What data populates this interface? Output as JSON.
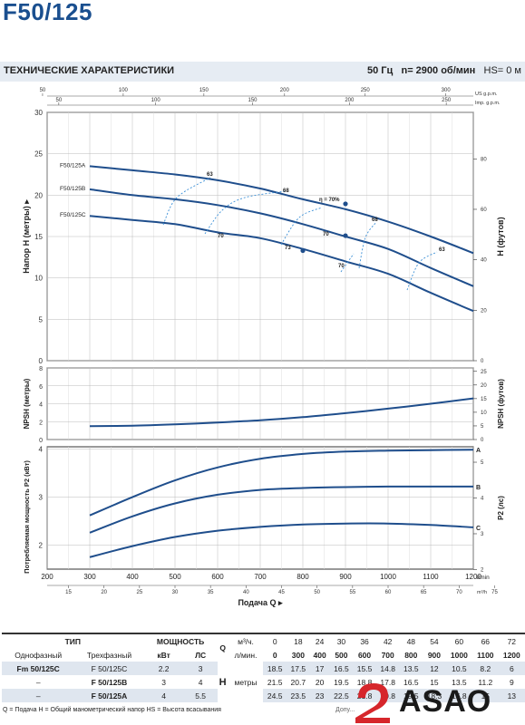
{
  "page": {
    "title": "F50/125",
    "subtitle": "ТЕХНИЧЕСКИЕ ХАРАКТЕРИСТИКИ",
    "freq": "50 Гц",
    "speed": "n= 2900  об/мин",
    "hs": "HS= 0 м"
  },
  "chart_data": [
    {
      "type": "line",
      "name": "head",
      "ylabel": "Напор Н (метры)",
      "ylabel_right": "H (футов)",
      "xlim": [
        200,
        1200
      ],
      "ylim": [
        0,
        30
      ],
      "yticks": [
        0,
        5,
        10,
        15,
        20,
        25,
        30
      ],
      "yticks_right": [
        "0",
        "20",
        "40",
        "60",
        "80"
      ],
      "top_axis_usgpm": {
        "unit": "US g.p.m.",
        "ticks": [
          "50",
          "100",
          "150",
          "200",
          "250",
          "300"
        ]
      },
      "top_axis_impgpm": {
        "unit": "Imp. g.p.m.",
        "ticks": [
          "50",
          "100",
          "150",
          "200",
          "250"
        ]
      },
      "series": [
        {
          "name": "F50/125A",
          "x": [
            300,
            400,
            500,
            600,
            700,
            800,
            900,
            1000,
            1100,
            1200
          ],
          "y": [
            23.5,
            23,
            22.5,
            21.8,
            20.8,
            19.5,
            18.3,
            16.8,
            15,
            13
          ]
        },
        {
          "name": "F50/125B",
          "x": [
            300,
            400,
            500,
            600,
            700,
            800,
            900,
            1000,
            1100,
            1200
          ],
          "y": [
            20.7,
            20,
            19.5,
            18.8,
            17.8,
            16.5,
            15,
            13.5,
            11.2,
            9
          ]
        },
        {
          "name": "F50/125C",
          "x": [
            300,
            400,
            500,
            600,
            700,
            800,
            900,
            1000,
            1100,
            1200
          ],
          "y": [
            17.5,
            17,
            16.5,
            15.5,
            14.8,
            13.5,
            12,
            10.5,
            8.2,
            6
          ]
        }
      ],
      "efficiency_labels": [
        "63",
        "68",
        "η = 70%",
        "68",
        "63",
        "70",
        "70",
        "73",
        "70"
      ]
    },
    {
      "type": "line",
      "name": "npsh",
      "ylabel": "NPSH (метры)",
      "ylabel_right": "NPSH (футов)",
      "xlim": [
        200,
        1200
      ],
      "ylim": [
        0,
        8
      ],
      "yticks": [
        0,
        2,
        4,
        6,
        8
      ],
      "yticks_right": [
        "0",
        "5",
        "10",
        "15",
        "20",
        "25"
      ],
      "series": [
        {
          "name": "NPSH",
          "x": [
            300,
            400,
            500,
            600,
            700,
            800,
            900,
            1000,
            1100,
            1200
          ],
          "y": [
            1.5,
            1.55,
            1.7,
            1.9,
            2.15,
            2.5,
            2.95,
            3.45,
            4.0,
            4.6
          ]
        }
      ]
    },
    {
      "type": "line",
      "name": "power",
      "ylabel": "Потребляемая мощность P2 (кВт)",
      "ylabel_right": "P2 (лс)",
      "xlabel": "Подача Q",
      "xlim": [
        200,
        1200
      ],
      "ylim": [
        1.5,
        4.05
      ],
      "yticks": [
        2,
        3,
        4
      ],
      "yticks_right": [
        "2",
        "3",
        "4",
        "5"
      ],
      "xticks": [
        "200",
        "300",
        "400",
        "500",
        "600",
        "700",
        "800",
        "900",
        "1000",
        "1100",
        "1200"
      ],
      "xunit": "l/min",
      "m3h_ticks": [
        "15",
        "20",
        "25",
        "30",
        "35",
        "40",
        "45",
        "50",
        "55",
        "60",
        "65",
        "70",
        "75"
      ],
      "m3h_unit": "m³/h",
      "series": [
        {
          "name": "A",
          "x": [
            300,
            400,
            500,
            600,
            700,
            800,
            900,
            1000,
            1100,
            1200
          ],
          "y": [
            2.62,
            3.0,
            3.35,
            3.62,
            3.8,
            3.9,
            3.95,
            3.97,
            3.98,
            3.99
          ]
        },
        {
          "name": "B",
          "x": [
            300,
            400,
            500,
            600,
            700,
            800,
            900,
            1000,
            1100,
            1200
          ],
          "y": [
            2.26,
            2.6,
            2.87,
            3.05,
            3.15,
            3.19,
            3.21,
            3.22,
            3.22,
            3.22
          ]
        },
        {
          "name": "C",
          "x": [
            300,
            400,
            500,
            600,
            700,
            800,
            900,
            1000,
            1100,
            1200
          ],
          "y": [
            1.75,
            1.98,
            2.17,
            2.3,
            2.38,
            2.43,
            2.45,
            2.45,
            2.42,
            2.37
          ]
        }
      ]
    }
  ],
  "table": {
    "type_header": "ТИП",
    "power_header": "МОЩНОСТЬ",
    "q_letter": "Q",
    "m3h": "м³/ч.",
    "lmin": "л/мин.",
    "single_phase": "Однофазный",
    "three_phase": "Трехфазный",
    "kw": "кВт",
    "hp": "ЛС",
    "q_m3h": [
      "0",
      "18",
      "24",
      "30",
      "36",
      "42",
      "48",
      "54",
      "60",
      "66",
      "72"
    ],
    "q_lmin": [
      "0",
      "300",
      "400",
      "500",
      "600",
      "700",
      "800",
      "900",
      "1000",
      "1100",
      "1200"
    ],
    "h_label": "H",
    "h_unit": "метры",
    "rows": [
      {
        "single": "Fm 50/125C",
        "three": "F 50/125C",
        "kw": "2.2",
        "hp": "3",
        "h": [
          "18.5",
          "17.5",
          "17",
          "16.5",
          "15.5",
          "14.8",
          "13.5",
          "12",
          "10.5",
          "8.2",
          "6"
        ]
      },
      {
        "single": "–",
        "three": "F 50/125B",
        "kw": "3",
        "hp": "4",
        "h": [
          "21.5",
          "20.7",
          "20",
          "19.5",
          "18.8",
          "17.8",
          "16.5",
          "15",
          "13.5",
          "11.2",
          "9"
        ]
      },
      {
        "single": "–",
        "three": "F 50/125A",
        "kw": "4",
        "hp": "5.5",
        "h": [
          "24.5",
          "23.5",
          "23",
          "22.5",
          "21.8",
          "20.8",
          "19.5",
          "18.3",
          "16.8",
          "15",
          "13"
        ]
      }
    ]
  },
  "footnote": "Q = Подача    H = Общий манометрический напор    HS = Высота всасывания",
  "footnote_right": "Допу...",
  "logo_text": "ASAO",
  "colors": {
    "curve": "#1f4e8c",
    "efficiency": "#3b8fd6",
    "accent": "#1a4f8f",
    "logo_red": "#d6262b"
  }
}
